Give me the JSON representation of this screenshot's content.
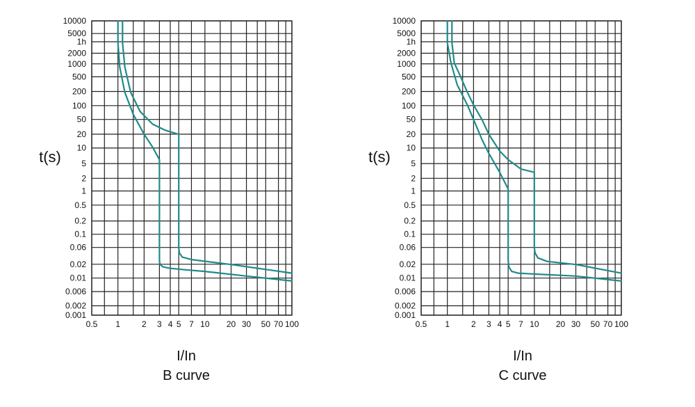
{
  "colors": {
    "curve": "#1f8a8a",
    "grid": "#222222",
    "text": "#111111",
    "background": "#ffffff"
  },
  "chart_data": [
    {
      "type": "line",
      "title": "B curve",
      "xlabel": "I/In",
      "ylabel": "t(s)",
      "x_scale": "log",
      "y_scale": "log",
      "xlim": [
        0.5,
        100
      ],
      "ylim": [
        0.001,
        10000
      ],
      "grid": true,
      "x_ticks": [
        "0.5",
        "1",
        "2",
        "3",
        "4",
        "5",
        "7",
        "10",
        "20",
        "30",
        "50",
        "70",
        "100"
      ],
      "y_ticks": [
        "10000",
        "5000",
        "1h",
        "2000",
        "1000",
        "500",
        "200",
        "100",
        "50",
        "20",
        "10",
        "5",
        "2",
        "1",
        "0.5",
        "0.2",
        "0.1",
        "0.06",
        "0.02",
        "0.01",
        "0.006",
        "0.002",
        "0.001"
      ],
      "series": [
        {
          "x": [
            1.0,
            1.0,
            1.05,
            1.2,
            1.5,
            2.0,
            2.5,
            3.0,
            3.0,
            3.0,
            3.05,
            3.3,
            4.0,
            6.0,
            10.0,
            30.0,
            100.0
          ],
          "y": [
            10000,
            3000,
            800,
            200,
            60,
            20,
            10,
            5,
            1,
            0.02,
            0.016,
            0.014,
            0.013,
            0.012,
            0.011,
            0.0085,
            0.0065
          ]
        },
        {
          "x": [
            1.13,
            1.13,
            1.2,
            1.4,
            1.8,
            2.5,
            3.5,
            5.0,
            5.0,
            5.0,
            5.1,
            5.5,
            7.0,
            20.0,
            100.0
          ],
          "y": [
            10000,
            3000,
            800,
            200,
            70,
            35,
            25,
            20,
            5,
            0.04,
            0.03,
            0.024,
            0.021,
            0.016,
            0.01
          ]
        }
      ]
    },
    {
      "type": "line",
      "title": "C curve",
      "xlabel": "I/In",
      "ylabel": "t(s)",
      "x_scale": "log",
      "y_scale": "log",
      "xlim": [
        0.5,
        100
      ],
      "ylim": [
        0.001,
        10000
      ],
      "grid": true,
      "x_ticks": [
        "0.5",
        "1",
        "2",
        "3",
        "4",
        "5",
        "7",
        "10",
        "20",
        "30",
        "50",
        "70",
        "100"
      ],
      "y_ticks": [
        "10000",
        "5000",
        "1h",
        "2000",
        "1000",
        "500",
        "200",
        "100",
        "50",
        "20",
        "10",
        "5",
        "2",
        "1",
        "0.5",
        "0.2",
        "0.1",
        "0.06",
        "0.02",
        "0.01",
        "0.006",
        "0.002",
        "0.001"
      ],
      "series": [
        {
          "x": [
            1.0,
            1.0,
            1.1,
            1.3,
            1.7,
            2.0,
            2.5,
            3.0,
            4.0,
            5.0,
            5.0,
            5.0,
            5.1,
            5.5,
            6.5,
            10.0,
            30.0,
            100.0
          ],
          "y": [
            10000,
            3000,
            1000,
            300,
            100,
            45,
            15,
            7,
            2.5,
            1,
            0.3,
            0.02,
            0.014,
            0.011,
            0.01,
            0.0095,
            0.0085,
            0.0065
          ]
        },
        {
          "x": [
            1.13,
            1.13,
            1.2,
            1.4,
            1.7,
            2.0,
            2.5,
            3.0,
            4.0,
            5.0,
            7.0,
            10.0,
            10.0,
            10.0,
            10.2,
            11.0,
            14.0,
            30.0,
            100.0
          ],
          "y": [
            10000,
            3000,
            1000,
            500,
            200,
            100,
            45,
            20,
            8,
            5,
            3,
            2.5,
            1,
            0.04,
            0.03,
            0.023,
            0.019,
            0.016,
            0.01
          ]
        }
      ]
    }
  ]
}
